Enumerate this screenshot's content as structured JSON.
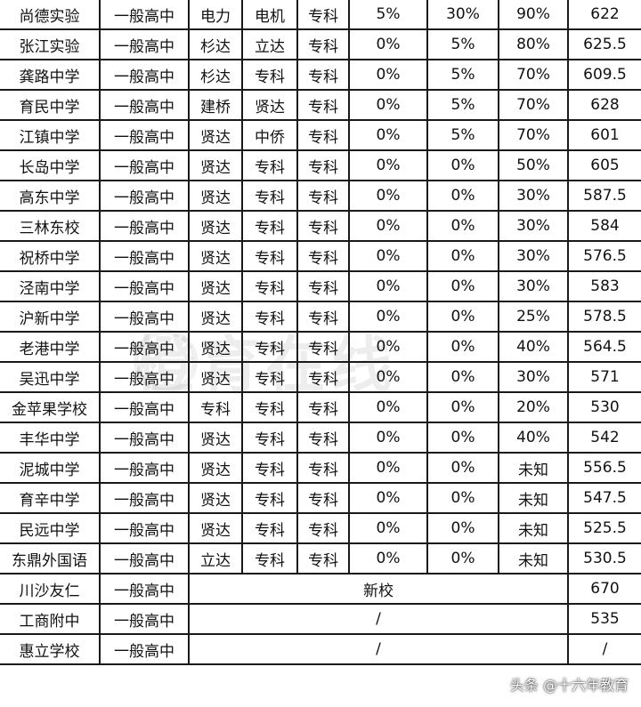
{
  "rows": [
    {
      "cells": [
        "尚德实验",
        "一般高中",
        "电力",
        "电机",
        "专科",
        "5%",
        "30%",
        "90%",
        "622"
      ]
    },
    {
      "cells": [
        "张江实验",
        "一般高中",
        "杉达",
        "立达",
        "专科",
        "0%",
        "5%",
        "80%",
        "625.5"
      ]
    },
    {
      "cells": [
        "龚路中学",
        "一般高中",
        "杉达",
        "专科",
        "专科",
        "0%",
        "5%",
        "70%",
        "609.5"
      ]
    },
    {
      "cells": [
        "育民中学",
        "一般高中",
        "建桥",
        "贤达",
        "专科",
        "0%",
        "5%",
        "70%",
        "628"
      ]
    },
    {
      "cells": [
        "江镇中学",
        "一般高中",
        "贤达",
        "中侨",
        "专科",
        "0%",
        "5%",
        "70%",
        "601"
      ]
    },
    {
      "cells": [
        "长岛中学",
        "一般高中",
        "贤达",
        "专科",
        "专科",
        "0%",
        "0%",
        "50%",
        "605"
      ]
    },
    {
      "cells": [
        "高东中学",
        "一般高中",
        "贤达",
        "专科",
        "专科",
        "0%",
        "0%",
        "30%",
        "587.5"
      ]
    },
    {
      "cells": [
        "三林东校",
        "一般高中",
        "贤达",
        "专科",
        "专科",
        "0%",
        "0%",
        "30%",
        "584"
      ]
    },
    {
      "cells": [
        "祝桥中学",
        "一般高中",
        "贤达",
        "专科",
        "专科",
        "0%",
        "0%",
        "30%",
        "576.5"
      ]
    },
    {
      "cells": [
        "泾南中学",
        "一般高中",
        "贤达",
        "专科",
        "专科",
        "0%",
        "0%",
        "30%",
        "583"
      ]
    },
    {
      "cells": [
        "沪新中学",
        "一般高中",
        "贤达",
        "专科",
        "专科",
        "0%",
        "0%",
        "25%",
        "578.5"
      ]
    },
    {
      "cells": [
        "老港中学",
        "一般高中",
        "贤达",
        "专科",
        "专科",
        "0%",
        "0%",
        "40%",
        "564.5"
      ]
    },
    {
      "cells": [
        "吴迅中学",
        "一般高中",
        "贤达",
        "专科",
        "专科",
        "0%",
        "0%",
        "30%",
        "571"
      ]
    },
    {
      "cells": [
        "金苹果学校",
        "一般高中",
        "专科",
        "专科",
        "专科",
        "0%",
        "0%",
        "20%",
        "530"
      ]
    },
    {
      "cells": [
        "丰华中学",
        "一般高中",
        "贤达",
        "专科",
        "专科",
        "0%",
        "0%",
        "40%",
        "542"
      ]
    },
    {
      "cells": [
        "泥城中学",
        "一般高中",
        "贤达",
        "专科",
        "专科",
        "0%",
        "0%",
        "未知",
        "556.5"
      ]
    },
    {
      "cells": [
        "育辛中学",
        "一般高中",
        "贤达",
        "专科",
        "专科",
        "0%",
        "0%",
        "未知",
        "547.5"
      ]
    },
    {
      "cells": [
        "民远中学",
        "一般高中",
        "贤达",
        "专科",
        "专科",
        "0%",
        "0%",
        "未知",
        "525.5"
      ]
    },
    {
      "cells": [
        "东鼎外国语",
        "一般高中",
        "立达",
        "专科",
        "专科",
        "0%",
        "0%",
        "未知",
        "530.5"
      ]
    }
  ],
  "merged_rows": [
    {
      "name": "川沙友仁",
      "type": "一般高中",
      "note": "新校",
      "score": "670"
    },
    {
      "name": "工商附中",
      "type": "一般高中",
      "note": "/",
      "score": "535"
    },
    {
      "name": "惠立学校",
      "type": "一般高中",
      "note": "/",
      "score": "/"
    }
  ],
  "watermark": {
    "text": "橙育在线"
  },
  "credit": {
    "text": "头条 @十六年教育"
  }
}
